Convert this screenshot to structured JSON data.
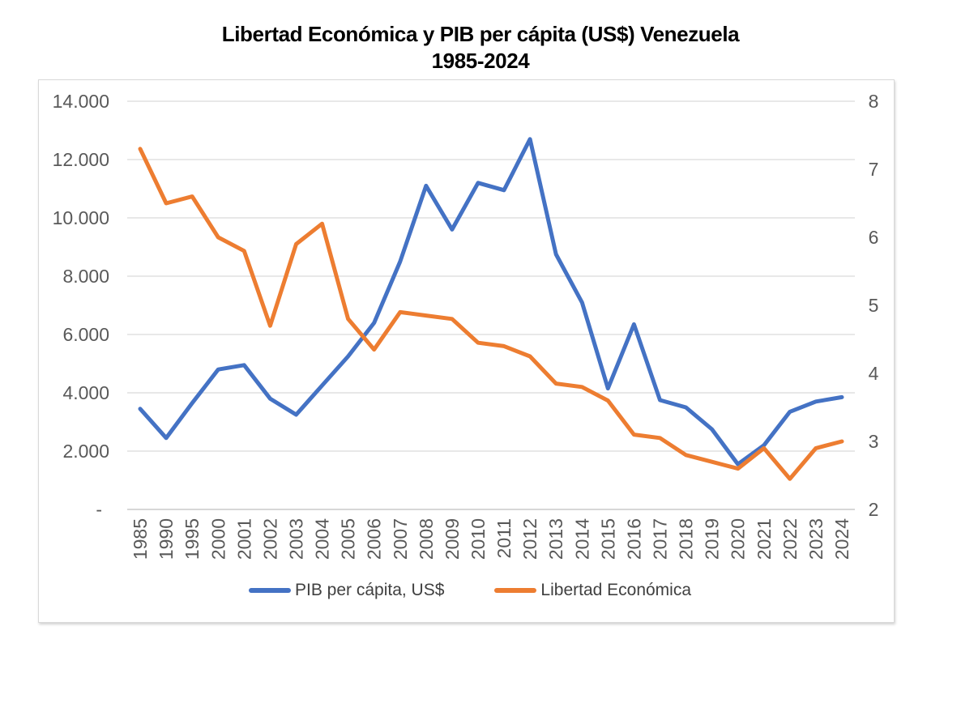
{
  "page": {
    "background": "#FFFFFF"
  },
  "chart_data": {
    "type": "line",
    "title": "Libertad Económica y PIB per cápita (US$) Venezuela",
    "subtitle": "1985-2024",
    "categories": [
      "1985",
      "1990",
      "1995",
      "2000",
      "2001",
      "2002",
      "2003",
      "2004",
      "2005",
      "2006",
      "2007",
      "2008",
      "2009",
      "2010",
      "2011",
      "2012",
      "2013",
      "2014",
      "2015",
      "2016",
      "2017",
      "2018",
      "2019",
      "2020",
      "2021",
      "2022",
      "2023",
      "2024"
    ],
    "series": [
      {
        "name": "PIB per cápita, US$",
        "color": "#4472C4",
        "axis": "left",
        "values": [
          3450,
          2450,
          3650,
          4800,
          4950,
          3800,
          3250,
          4250,
          5250,
          6400,
          8500,
          11100,
          9600,
          11200,
          10950,
          12700,
          8750,
          7100,
          4150,
          6350,
          3750,
          3500,
          2750,
          1550,
          2200,
          3350,
          3700,
          3850
        ]
      },
      {
        "name": "Libertad Económica",
        "color": "#ED7D31",
        "axis": "right",
        "values": [
          7.3,
          6.5,
          6.6,
          6.0,
          5.8,
          4.7,
          5.9,
          6.2,
          4.8,
          4.35,
          4.9,
          4.85,
          4.8,
          4.45,
          4.4,
          4.25,
          3.85,
          3.8,
          3.6,
          3.1,
          3.05,
          2.8,
          2.7,
          2.6,
          2.9,
          2.45,
          2.9,
          3.0
        ]
      }
    ],
    "left_axis": {
      "min": 0,
      "max": 14000,
      "step": 2000,
      "tick_labels": [
        "-",
        "2.000",
        "4.000",
        "6.000",
        "8.000",
        "10.000",
        "12.000",
        "14.000"
      ]
    },
    "right_axis": {
      "min": 2,
      "max": 8,
      "step": 1,
      "tick_labels": [
        "2",
        "3",
        "4",
        "5",
        "6",
        "7",
        "8"
      ]
    },
    "grid": true,
    "legend_position": "bottom",
    "colors": {
      "grid": "#D9D9D9",
      "axis_line": "#BFBFBF",
      "tick_text": "#595959",
      "legend_text": "#404040",
      "title_text": "#000000",
      "frame_border": "#D9D9D9"
    }
  }
}
